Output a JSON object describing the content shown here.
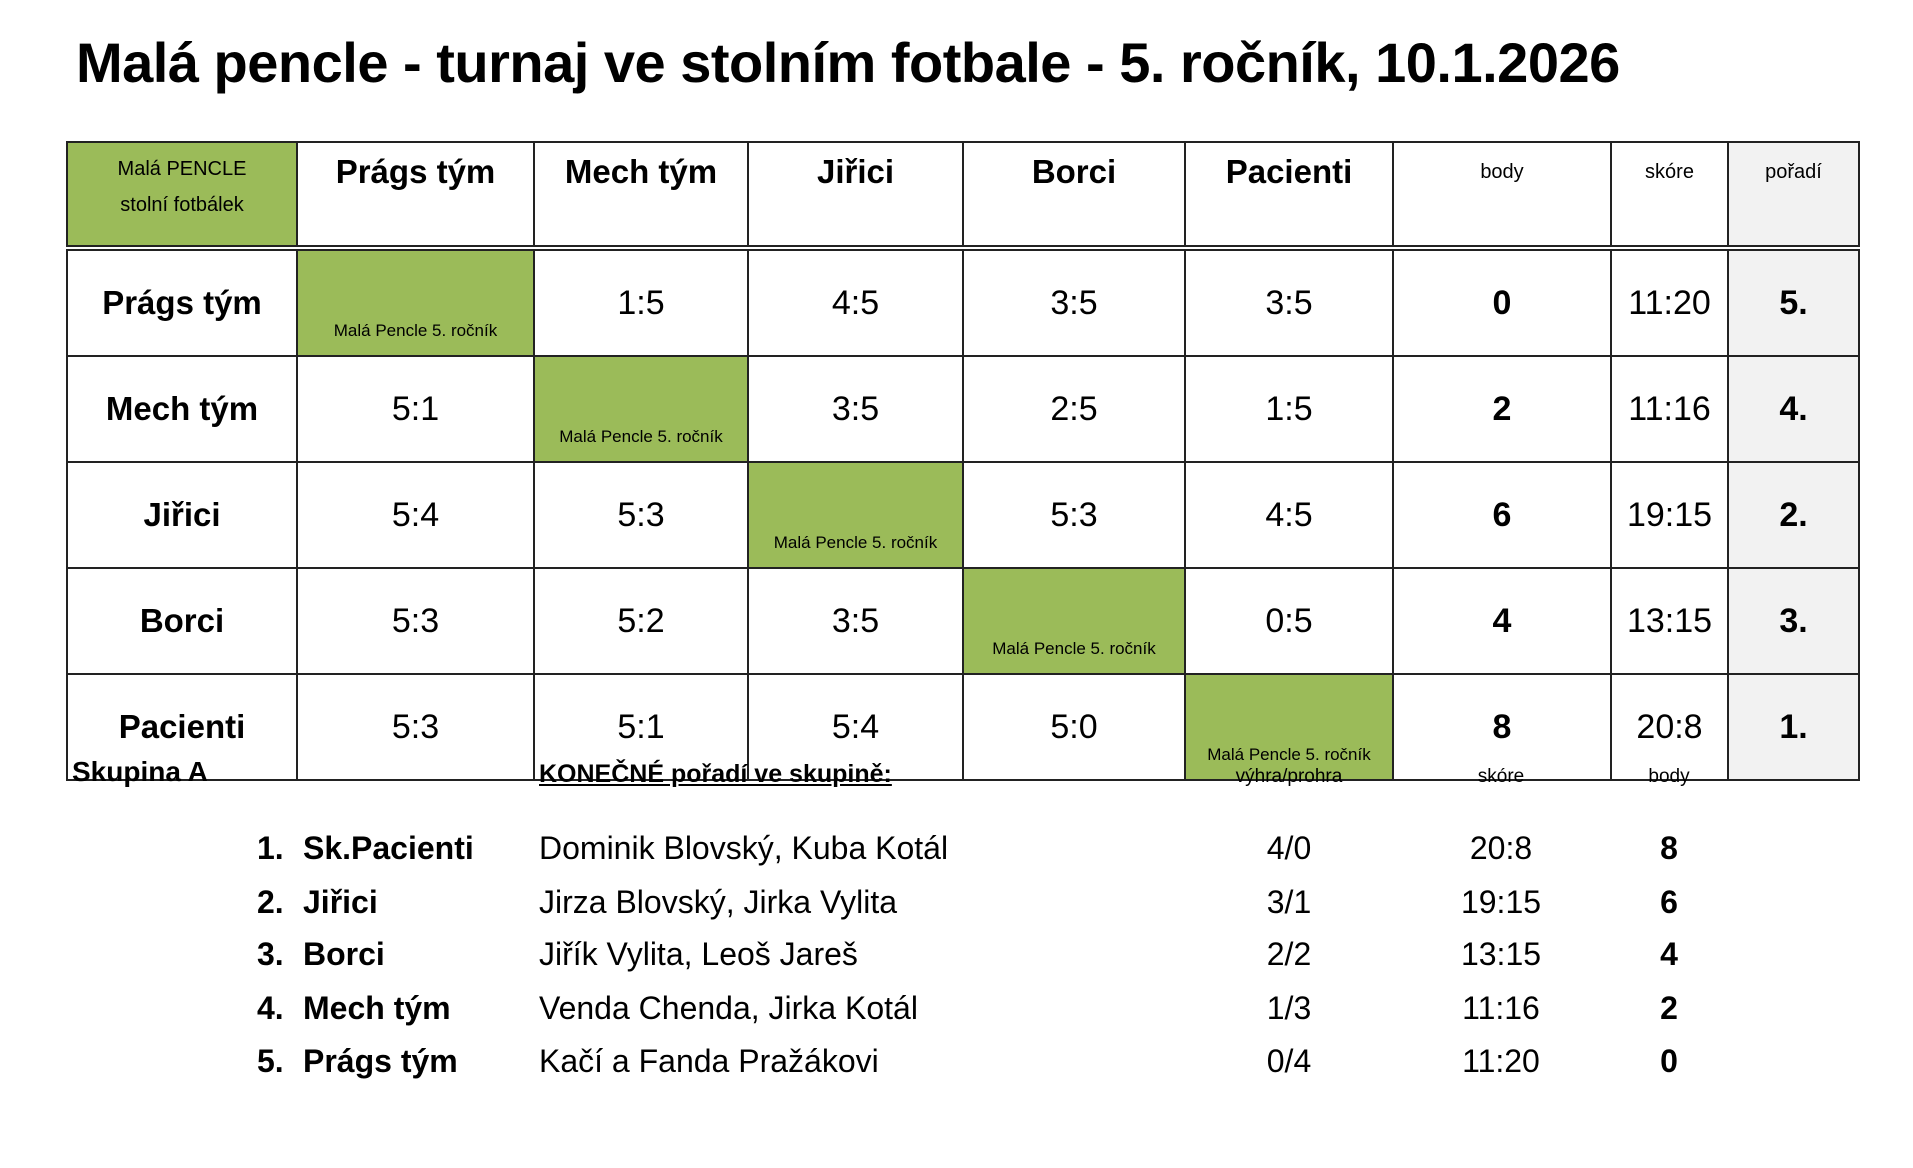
{
  "title": "Malá pencle - turnaj ve stolním fotbale - 5. ročník, 10.1.2026",
  "colors": {
    "diagonal_green": "#9bbb59",
    "rank_column_bg": "#f2f2f2"
  },
  "table": {
    "corner": [
      "Malá PENCLE",
      "stolní fotbálek"
    ],
    "headers": [
      "Prágs tým",
      "Mech tým",
      "Jiřici",
      "Borci",
      "Pacienti",
      "body",
      "skóre",
      "pořadí"
    ],
    "diagonal_label": "Malá Pencle 5. ročník",
    "rows": [
      {
        "team": "Prágs tým",
        "results": [
          "",
          "1:5",
          "4:5",
          "3:5",
          "3:5"
        ],
        "body": "0",
        "skore": "11:20",
        "poradi": "5."
      },
      {
        "team": "Mech tým",
        "results": [
          "5:1",
          "",
          "3:5",
          "2:5",
          "1:5"
        ],
        "body": "2",
        "skore": "11:16",
        "poradi": "4."
      },
      {
        "team": "Jiřici",
        "results": [
          "5:4",
          "5:3",
          "",
          "5:3",
          "4:5"
        ],
        "body": "6",
        "skore": "19:15",
        "poradi": "2."
      },
      {
        "team": "Borci",
        "results": [
          "5:3",
          "5:2",
          "3:5",
          "",
          "0:5"
        ],
        "body": "4",
        "skore": "13:15",
        "poradi": "3."
      },
      {
        "team": "Pacienti",
        "results": [
          "5:3",
          "5:1",
          "5:4",
          "5:0",
          ""
        ],
        "body": "8",
        "skore": "20:8",
        "poradi": "1."
      }
    ]
  },
  "summary": {
    "group": "Skupina A",
    "heading": "KONEČNÉ pořadí ve skupině:",
    "col_winloss": "výhra/prohra",
    "col_score": "skóre",
    "col_points": "body",
    "rows": [
      {
        "rank": "1.",
        "team": "Sk.Pacienti",
        "players": "Dominik Blovský, Kuba Kotál",
        "winloss": "4/0",
        "score": "20:8",
        "points": "8"
      },
      {
        "rank": "2.",
        "team": "Jiřici",
        "players": "Jirza Blovský, Jirka Vylita",
        "winloss": "3/1",
        "score": "19:15",
        "points": "6"
      },
      {
        "rank": "3.",
        "team": "Borci",
        "players": "Jiřík Vylita, Leoš Jareš",
        "winloss": "2/2",
        "score": "13:15",
        "points": "4"
      },
      {
        "rank": "4.",
        "team": "Mech tým",
        "players": "Venda Chenda, Jirka Kotál",
        "winloss": "1/3",
        "score": "11:16",
        "points": "2"
      },
      {
        "rank": "5.",
        "team": "Prágs tým",
        "players": "Kačí a Fanda Pražákovi",
        "winloss": "0/4",
        "score": "11:20",
        "points": "0"
      }
    ]
  }
}
